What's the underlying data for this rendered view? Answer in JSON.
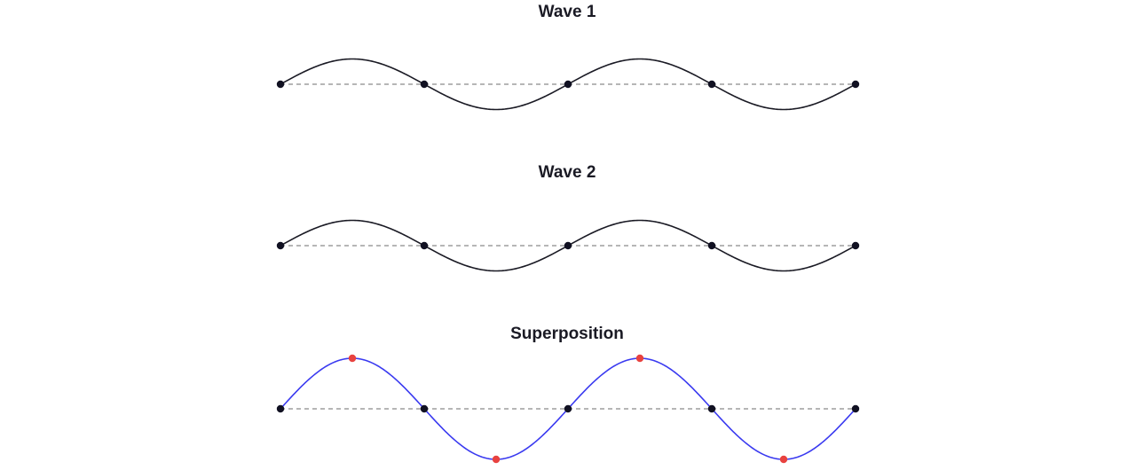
{
  "colors": {
    "background": "#ffffff",
    "title": "#1a1a24",
    "baseline": "#8a8a8a",
    "wave": "#1a1a24",
    "superposition": "#3a3af0",
    "node": "#111122",
    "extremum": "#e8423f"
  },
  "panels": [
    {
      "id": "wave-1",
      "title": "Wave 1",
      "amplitude": 1,
      "cycles": 2,
      "line_color": "#1a1a24",
      "mark_extrema": false
    },
    {
      "id": "wave-2",
      "title": "Wave 2",
      "amplitude": 1,
      "cycles": 2,
      "line_color": "#1a1a24",
      "mark_extrema": false
    },
    {
      "id": "superposition",
      "title": "Superposition",
      "amplitude": 2,
      "cycles": 2,
      "line_color": "#3a3af0",
      "mark_extrema": true
    }
  ]
}
